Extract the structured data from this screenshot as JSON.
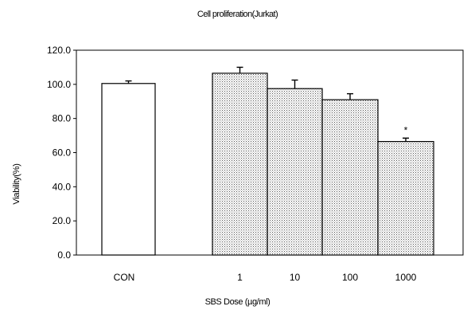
{
  "chart_data": {
    "type": "bar",
    "title": "Cell proliferation(Jurkat)",
    "xlabel": "SBS Dose (µg/ml)",
    "ylabel": "Viability(%)",
    "categories": [
      "CON",
      "1",
      "10",
      "100",
      "1000"
    ],
    "values": [
      100.5,
      106.5,
      97.5,
      91.0,
      66.5
    ],
    "errors": [
      1.5,
      3.5,
      5.0,
      3.5,
      2.0
    ],
    "annotations": [
      "",
      "",
      "",
      "",
      "*"
    ],
    "ylim": [
      0,
      120
    ],
    "yticks": [
      "0.0",
      "20.0",
      "40.0",
      "60.0",
      "80.0",
      "100.0",
      "120.0"
    ],
    "grid": false,
    "colors": {
      "control_fill": "#ffffff",
      "treated_fill": "#d9d9d9",
      "stroke": "#000000"
    }
  }
}
